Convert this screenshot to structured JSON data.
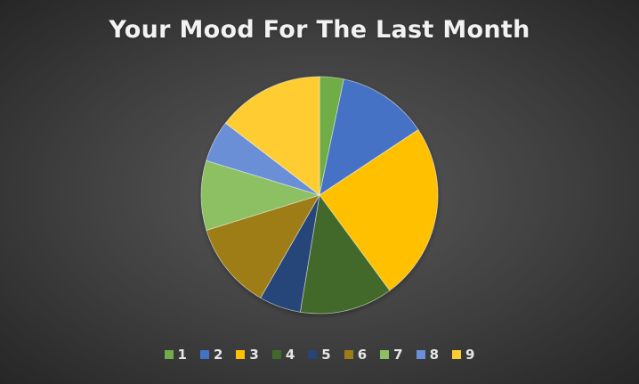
{
  "chart_data": {
    "type": "pie",
    "title": "Your Mood For The Last Month",
    "legend_position": "bottom",
    "start_angle_deg": 0,
    "direction": "clockwise",
    "categories": [
      "1",
      "2",
      "3",
      "4",
      "5",
      "6",
      "7",
      "8",
      "9"
    ],
    "values": [
      3.3,
      12.4,
      24.2,
      12.7,
      5.7,
      11.9,
      9.5,
      5.7,
      14.6
    ],
    "colors": [
      "#70ad47",
      "#4472c4",
      "#ffc000",
      "#43682b",
      "#264478",
      "#9e7b16",
      "#8cc063",
      "#6a8fd6",
      "#ffcd33"
    ]
  }
}
